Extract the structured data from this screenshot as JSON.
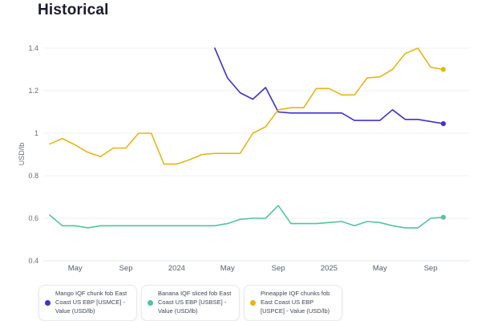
{
  "page": {
    "title": "Historical"
  },
  "chart_data": {
    "type": "line",
    "title": "Historical",
    "xlabel": "",
    "ylabel": "USD/lb",
    "ylim": [
      0.4,
      1.45
    ],
    "yticks": [
      1.4,
      1.2,
      1,
      0.8,
      0.6,
      0.4
    ],
    "ytick_labels": [
      "1.4",
      "1.2",
      "1",
      "0.8",
      "0.6",
      "0.4"
    ],
    "grid": "horizontal",
    "legend_position": "bottom",
    "x": [
      "Mar 2023",
      "Apr 2023",
      "May 2023",
      "Jun 2023",
      "Jul 2023",
      "Aug 2023",
      "Sep 2023",
      "Oct 2023",
      "Nov 2023",
      "Dec 2023",
      "Jan 2024",
      "Feb 2024",
      "Mar 2024",
      "Apr 2024",
      "May 2024",
      "Jun 2024",
      "Jul 2024",
      "Aug 2024",
      "Sep 2024",
      "Oct 2024",
      "Nov 2024",
      "Dec 2024",
      "Jan 2025",
      "Feb 2025",
      "Mar 2025",
      "Apr 2025",
      "May 2025",
      "Jun 2025",
      "Jul 2025",
      "Aug 2025",
      "Sep 2025",
      "Oct 2025"
    ],
    "x_tick_labels": [
      "May",
      "Sep",
      "2024",
      "May",
      "Sep",
      "2025",
      "May",
      "Sep"
    ],
    "x_tick_indices": [
      2,
      6,
      10,
      14,
      18,
      22,
      26,
      30
    ],
    "series": [
      {
        "name": "Mango IQF chunk fob East Coast US EBP [USMCE] - Value (USD/lb)",
        "color": "#4130d2",
        "values": [
          null,
          null,
          null,
          null,
          null,
          null,
          null,
          null,
          null,
          null,
          null,
          null,
          null,
          1.4,
          1.26,
          1.19,
          1.16,
          1.215,
          1.1,
          1.095,
          1.095,
          1.095,
          1.095,
          1.095,
          1.06,
          1.06,
          1.06,
          1.11,
          1.065,
          1.065,
          1.055,
          1.045
        ]
      },
      {
        "name": "Banana IQF sliced fob East Coast US EBP [USBSE] - Value (USD/lb)",
        "color": "#4fc79a",
        "values": [
          0.615,
          0.565,
          0.565,
          0.555,
          0.565,
          0.565,
          0.565,
          0.565,
          0.565,
          0.565,
          0.565,
          0.565,
          0.565,
          0.565,
          0.575,
          0.595,
          0.6,
          0.6,
          0.66,
          0.575,
          0.575,
          0.575,
          0.58,
          0.585,
          0.565,
          0.585,
          0.58,
          0.565,
          0.555,
          0.555,
          0.6,
          0.605
        ]
      },
      {
        "name": "Pineapple IQF chunks fob East Coast US EBP [USPCE] - Value (USD/lb)",
        "color": "#e8b515",
        "values": [
          0.95,
          0.975,
          0.945,
          0.91,
          0.89,
          0.93,
          0.93,
          1.0,
          1.0,
          0.855,
          0.855,
          0.875,
          0.9,
          0.905,
          0.905,
          0.905,
          1.0,
          1.03,
          1.11,
          1.12,
          1.12,
          1.21,
          1.21,
          1.18,
          1.18,
          1.26,
          1.265,
          1.3,
          1.375,
          1.4,
          1.31,
          1.3
        ]
      }
    ]
  }
}
